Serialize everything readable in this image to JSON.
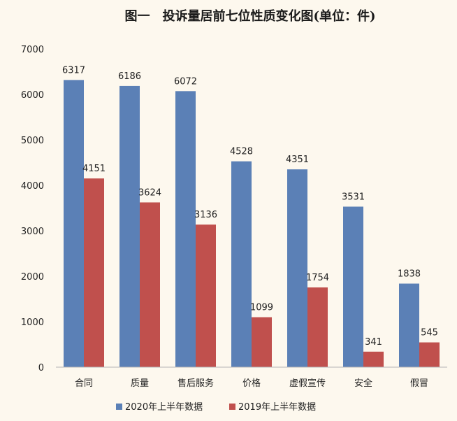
{
  "chart_data": {
    "type": "bar",
    "title": "图一　投诉量居前七位性质变化图(单位：件)",
    "categories": [
      "合同",
      "质量",
      "售后服务",
      "价格",
      "虚假宣传",
      "安全",
      "假冒"
    ],
    "series": [
      {
        "name": "2020年上半年数据",
        "color": "#5b80b6",
        "values": [
          6317,
          6186,
          6072,
          4528,
          4351,
          3531,
          1838
        ]
      },
      {
        "name": "2019年上半年数据",
        "color": "#c0504d",
        "values": [
          4151,
          3624,
          3136,
          1099,
          1754,
          341,
          545
        ]
      }
    ],
    "ylim": [
      0,
      7000
    ],
    "yticks": [
      0,
      1000,
      2000,
      3000,
      4000,
      5000,
      6000,
      7000
    ],
    "grid": false,
    "legend_position": "bottom"
  }
}
